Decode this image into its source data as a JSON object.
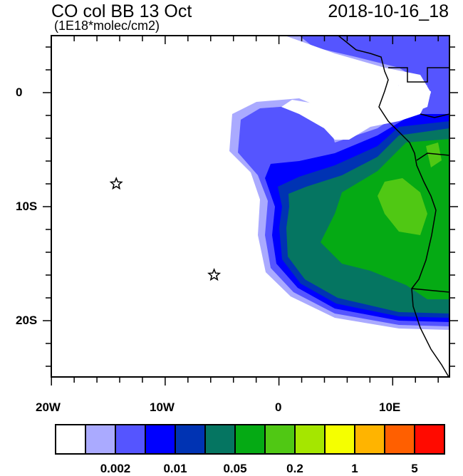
{
  "title": "CO col BB 13 Oct",
  "units": "(1E18*molec/cm2)",
  "date": "2018-10-16_18",
  "map": {
    "lon_range": [
      -20,
      15
    ],
    "lat_range": [
      -25,
      5
    ],
    "lat_labels": [
      "0",
      "10S",
      "20S"
    ],
    "lon_labels": [
      "20W",
      "10W",
      "0",
      "10E"
    ],
    "markers": [
      {
        "icon": "star-icon",
        "lon": -14.3,
        "lat": -8
      },
      {
        "icon": "star-icon",
        "lon": -5.7,
        "lat": -16
      }
    ]
  },
  "colorbar": {
    "colors": [
      "#ffffff",
      "#aaaaff",
      "#5555ff",
      "#0000ff",
      "#0033b3",
      "#057561",
      "#05aa14",
      "#50c814",
      "#a5e600",
      "#f5ff00",
      "#ffb400",
      "#ff5f00",
      "#ff0a00"
    ],
    "labels": [
      "0.002",
      "0.01",
      "0.05",
      "0.2",
      "1",
      "5"
    ]
  }
}
